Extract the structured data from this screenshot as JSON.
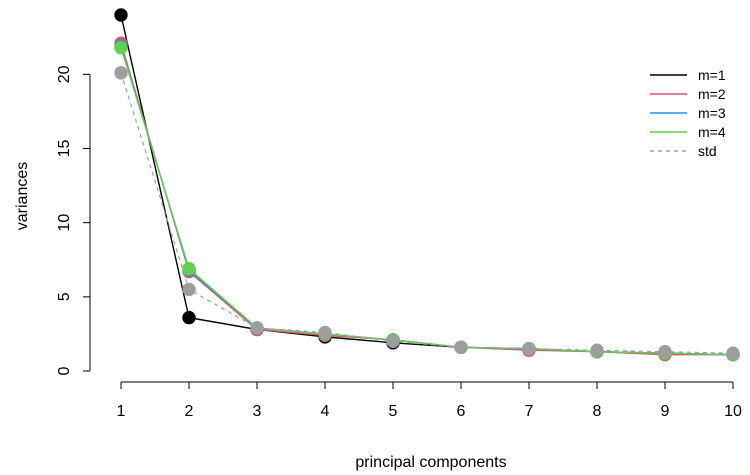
{
  "chart_data": {
    "type": "line",
    "xlabel": "principal components",
    "ylabel": "variances",
    "xlim": [
      1,
      10
    ],
    "ylim": [
      0,
      24
    ],
    "x_ticks": [
      1,
      2,
      3,
      4,
      5,
      6,
      7,
      8,
      9,
      10
    ],
    "y_ticks": [
      0,
      5,
      10,
      15,
      20
    ],
    "x_tick_labels": [
      "1",
      "2",
      "3",
      "4",
      "5",
      "6",
      "7",
      "8",
      "9",
      "10"
    ],
    "y_tick_labels": [
      "0",
      "5",
      "10",
      "15",
      "20"
    ],
    "grid": false,
    "legend_position": "top-right",
    "series": [
      {
        "name": "m=1",
        "color": "#000000",
        "line_style": "solid",
        "x": [
          1,
          2,
          3,
          4,
          5,
          6,
          7,
          8,
          9,
          10
        ],
        "values": [
          24.0,
          3.6,
          2.8,
          2.3,
          1.9,
          1.6,
          1.5,
          1.3,
          1.2,
          1.1
        ]
      },
      {
        "name": "m=2",
        "color": "#DF536B",
        "line_style": "solid",
        "x": [
          1,
          2,
          3,
          4,
          5,
          6,
          7,
          8,
          9,
          10
        ],
        "values": [
          22.1,
          6.7,
          2.8,
          2.4,
          2.1,
          1.6,
          1.4,
          1.3,
          1.1,
          1.1
        ]
      },
      {
        "name": "m=3",
        "color": "#2297E6",
        "line_style": "solid",
        "x": [
          1,
          2,
          3,
          4,
          5,
          6,
          7,
          8,
          9,
          10
        ],
        "values": [
          21.9,
          6.8,
          2.9,
          2.5,
          2.1,
          1.6,
          1.5,
          1.3,
          1.2,
          1.1
        ]
      },
      {
        "name": "m=4",
        "color": "#61D04F",
        "line_style": "solid",
        "x": [
          1,
          2,
          3,
          4,
          5,
          6,
          7,
          8,
          9,
          10
        ],
        "values": [
          21.8,
          6.9,
          2.9,
          2.5,
          2.1,
          1.6,
          1.5,
          1.3,
          1.2,
          1.1
        ]
      },
      {
        "name": "std",
        "color": "#9E9E9E",
        "line_style": "dashed",
        "x": [
          1,
          2,
          3,
          4,
          5,
          6,
          7,
          8,
          9,
          10
        ],
        "values": [
          20.1,
          5.5,
          2.9,
          2.6,
          2.0,
          1.6,
          1.5,
          1.4,
          1.3,
          1.2
        ]
      }
    ]
  }
}
